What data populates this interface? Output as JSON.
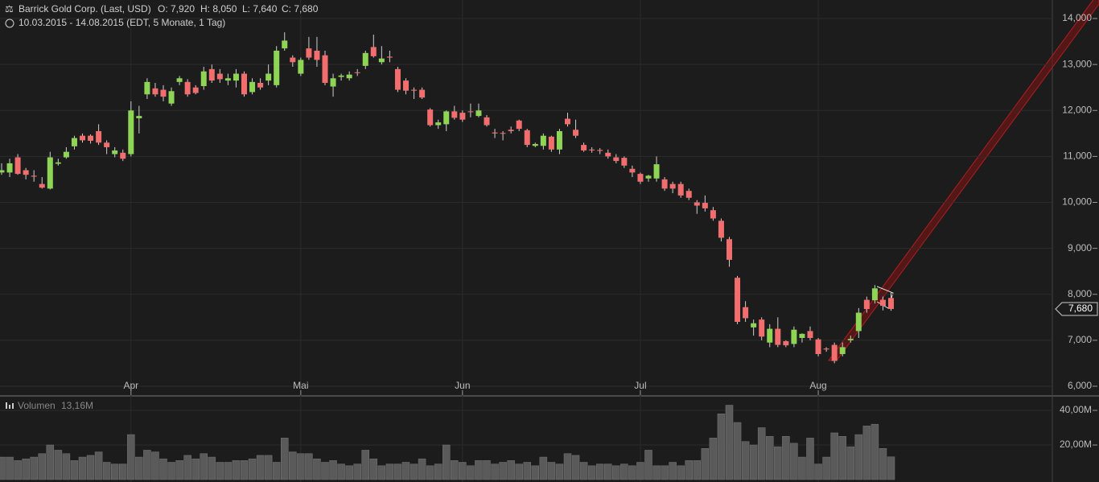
{
  "chart_data": {
    "type": "candlestick",
    "header": {
      "title": "Barrick Gold Corp. (Last, USD)",
      "open": "O: 7,920",
      "high": "H: 8,050",
      "low": "L: 7,640",
      "close": "C: 7,680",
      "range": "10.03.2015 - 14.08.2015 (EDT, 5 Monate, 1 Tag)"
    },
    "categories": [
      null,
      null,
      null,
      null,
      null,
      null,
      null,
      null,
      null,
      null,
      null,
      null,
      null,
      null,
      null,
      null,
      "Apr",
      null,
      null,
      null,
      null,
      null,
      null,
      null,
      null,
      null,
      null,
      null,
      null,
      null,
      null,
      null,
      null,
      null,
      null,
      null,
      null,
      "Mai",
      null,
      null,
      null,
      null,
      null,
      null,
      null,
      null,
      null,
      null,
      null,
      null,
      null,
      null,
      null,
      null,
      null,
      null,
      null,
      "Jun",
      null,
      null,
      null,
      null,
      null,
      null,
      null,
      null,
      null,
      null,
      null,
      null,
      null,
      null,
      null,
      null,
      null,
      null,
      null,
      null,
      null,
      "Jul",
      null,
      null,
      null,
      null,
      null,
      null,
      null,
      null,
      null,
      null,
      null,
      null,
      null,
      null,
      null,
      null,
      null,
      null,
      null,
      null,
      null,
      "Aug",
      null,
      null,
      null,
      null,
      null,
      null,
      null,
      null,
      null
    ],
    "open": [
      10650,
      10650,
      10980,
      10700,
      10580,
      10400,
      10300,
      10840,
      10980,
      11220,
      11450,
      11450,
      11550,
      11300,
      11050,
      11080,
      11050,
      11830,
      12350,
      12480,
      12450,
      12150,
      12620,
      12620,
      12500,
      12530,
      12900,
      12800,
      12650,
      12650,
      12800,
      12400,
      12600,
      12650,
      12550,
      13350,
      13150,
      12800,
      13350,
      13300,
      13200,
      12520,
      12730,
      12700,
      12830,
      12970,
      13380,
      13050,
      13170,
      12900,
      12650,
      12450,
      12450,
      12020,
      11680,
      11700,
      11980,
      11950,
      11980,
      11880,
      11850,
      11520,
      11510,
      11580,
      11780,
      11570,
      11230,
      11230,
      11430,
      11150,
      11820,
      11580,
      11250,
      11150,
      11140,
      11080,
      10980,
      10970,
      10730,
      10620,
      10520,
      10520,
      10500,
      10400,
      10400,
      10250,
      10000,
      9990,
      9830,
      9600,
      9200,
      8360,
      7720,
      7280,
      7450,
      6950,
      7250,
      6980,
      6920,
      7050,
      7200,
      7020,
      6820,
      6900,
      6700,
      7000,
      7200,
      7880,
      7870,
      7880,
      7920
    ],
    "high": [
      10850,
      10950,
      11050,
      10750,
      10700,
      10550,
      11100,
      10950,
      11200,
      11450,
      11500,
      11480,
      11700,
      11350,
      11200,
      11150,
      12200,
      12100,
      12700,
      12600,
      12550,
      12500,
      12750,
      12680,
      12550,
      12950,
      13000,
      12900,
      12800,
      12900,
      12850,
      12700,
      12700,
      13000,
      13400,
      13700,
      13200,
      13150,
      13600,
      13600,
      13300,
      12800,
      12800,
      12850,
      12900,
      13300,
      13650,
      13400,
      13300,
      12950,
      12700,
      12500,
      12500,
      12050,
      11800,
      12000,
      12100,
      12000,
      12150,
      12150,
      11900,
      11600,
      11550,
      11650,
      11800,
      11600,
      11300,
      11500,
      11450,
      11600,
      11950,
      11800,
      11300,
      11200,
      11180,
      11150,
      11050,
      11000,
      10800,
      10650,
      10600,
      11000,
      10550,
      10450,
      10450,
      10300,
      10050,
      10150,
      9900,
      9650,
      9250,
      8400,
      7850,
      7450,
      7500,
      7350,
      7500,
      7000,
      7300,
      7150,
      7300,
      7050,
      6850,
      6950,
      6950,
      7100,
      7700,
      7950,
      8200,
      7950,
      8050
    ],
    "low": [
      10600,
      10550,
      10600,
      10500,
      10450,
      10300,
      10280,
      10800,
      10950,
      11150,
      11300,
      11280,
      11250,
      11050,
      10980,
      10900,
      11000,
      11500,
      12250,
      12300,
      12200,
      12100,
      12550,
      12300,
      12350,
      12450,
      12600,
      12600,
      12550,
      12500,
      12300,
      12350,
      12450,
      12550,
      12500,
      13300,
      12950,
      12750,
      13100,
      12950,
      12550,
      12300,
      12650,
      12650,
      12750,
      12900,
      13150,
      13000,
      13050,
      12400,
      12350,
      12250,
      12250,
      11650,
      11600,
      11550,
      11800,
      11750,
      11850,
      11850,
      11650,
      11400,
      11350,
      11500,
      11550,
      11200,
      11200,
      11150,
      11100,
      11050,
      11650,
      11400,
      11100,
      11080,
      11050,
      10950,
      10850,
      10750,
      10550,
      10400,
      10450,
      10450,
      10250,
      10200,
      10100,
      10050,
      9750,
      9800,
      9600,
      9150,
      8600,
      7350,
      7400,
      7100,
      7000,
      6850,
      6850,
      6850,
      6850,
      6950,
      7000,
      6650,
      6750,
      6500,
      6650,
      6950,
      7050,
      7600,
      7800,
      7650,
      7640
    ],
    "close": [
      10700,
      10850,
      10620,
      10600,
      10560,
      10320,
      10980,
      10870,
      11100,
      11400,
      11350,
      11340,
      11300,
      11200,
      11130,
      10950,
      12000,
      11880,
      12620,
      12350,
      12300,
      12420,
      12700,
      12350,
      12380,
      12850,
      12650,
      12680,
      12700,
      12800,
      12350,
      12620,
      12500,
      12800,
      13300,
      13520,
      13050,
      13100,
      13150,
      13100,
      12600,
      12700,
      12760,
      12780,
      12820,
      13250,
      13180,
      13130,
      13150,
      12450,
      12430,
      12430,
      12280,
      11680,
      11740,
      11980,
      11840,
      11800,
      11970,
      12000,
      11680,
      11500,
      11500,
      11550,
      11600,
      11250,
      11270,
      11450,
      11150,
      11550,
      11700,
      11450,
      11130,
      11130,
      11120,
      11000,
      10900,
      10800,
      10650,
      10450,
      10580,
      10830,
      10300,
      10300,
      10150,
      10100,
      9930,
      9870,
      9650,
      9230,
      8750,
      7400,
      7480,
      7370,
      7080,
      7250,
      6900,
      6890,
      7230,
      7140,
      7050,
      6700,
      6800,
      6550,
      6850,
      7030,
      7600,
      7680,
      8130,
      7750,
      7680
    ],
    "volume": [
      13,
      13,
      11,
      12,
      13,
      15,
      20,
      17,
      15,
      11,
      13,
      14,
      16,
      10,
      9,
      9,
      26,
      13,
      17,
      16,
      12,
      10,
      11,
      14,
      12,
      15,
      13,
      10,
      10,
      11,
      11,
      12,
      14,
      14,
      10,
      24,
      16,
      15,
      15,
      12,
      10,
      11,
      9,
      8,
      9,
      17,
      12,
      8,
      9,
      9,
      10,
      9,
      12,
      8,
      9,
      20,
      11,
      10,
      8,
      11,
      11,
      9,
      10,
      11,
      9,
      10,
      8,
      13,
      10,
      9,
      15,
      14,
      10,
      8,
      9,
      9,
      8,
      9,
      8,
      10,
      17,
      8,
      8,
      10,
      8,
      11,
      11,
      18,
      24,
      38,
      43,
      33,
      22,
      20,
      30,
      25,
      19,
      25,
      21,
      13,
      24,
      9,
      13,
      27,
      25,
      19,
      26,
      31,
      32,
      18,
      13.16
    ],
    "volume_title": "Volumen",
    "volume_value_label": "13,16M",
    "last_price": {
      "value": 7680,
      "label": "7,680"
    },
    "up_color": "#8ed455",
    "down_color": "#f26d6d",
    "volume_color": "#5a5a5a",
    "ylim": [
      5807,
      14403
    ],
    "yticks": [
      {
        "value": 6000,
        "label": "6,000"
      },
      {
        "value": 7000,
        "label": "7,000"
      },
      {
        "value": 8000,
        "label": "8,000"
      },
      {
        "value": 9000,
        "label": "9,000"
      },
      {
        "value": 10000,
        "label": "10,000"
      },
      {
        "value": 11000,
        "label": "11,000"
      },
      {
        "value": 12000,
        "label": "12,000"
      },
      {
        "value": 13000,
        "label": "13,000"
      },
      {
        "value": 14000,
        "label": "14,000"
      }
    ],
    "y2lim": [
      0,
      46.5
    ],
    "y2ticks": [
      {
        "value": 20,
        "label": "20,00M"
      },
      {
        "value": 40,
        "label": "40,00M"
      }
    ],
    "grid": true
  }
}
